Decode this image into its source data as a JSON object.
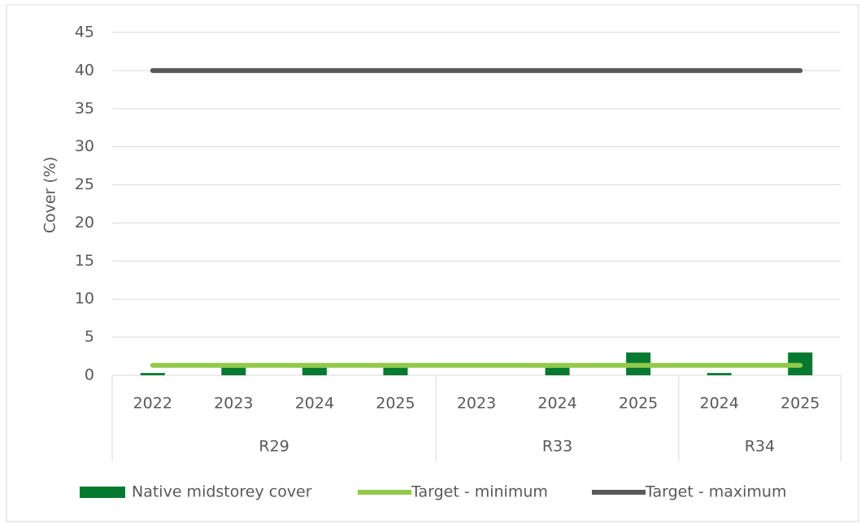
{
  "chart_data": {
    "type": "bar",
    "y_label": "Cover (%)",
    "categories": [
      "2022",
      "2023",
      "2024",
      "2025",
      "2023",
      "2024",
      "2025",
      "2024",
      "2025"
    ],
    "category_groups": [
      {
        "name": "R29",
        "size": 4
      },
      {
        "name": "R33",
        "size": 3
      },
      {
        "name": "R34",
        "size": 2
      }
    ],
    "series": [
      {
        "name": "Native midstorey cover",
        "type": "bar",
        "color": "#047a30",
        "values": [
          0.3,
          1,
          1,
          1,
          0,
          1,
          3,
          0.3,
          3
        ]
      },
      {
        "name": "Target - minimum",
        "type": "line",
        "color": "#92c94a",
        "values": [
          1.3,
          1.3,
          1.3,
          1.3,
          1.3,
          1.3,
          1.3,
          1.3,
          1.3
        ]
      },
      {
        "name": "Target - maximum",
        "type": "line",
        "color": "#595959",
        "values": [
          40,
          40,
          40,
          40,
          40,
          40,
          40,
          40,
          40
        ]
      }
    ],
    "ylim": [
      0,
      45
    ],
    "yticks": [
      0,
      5,
      10,
      15,
      20,
      25,
      30,
      35,
      40,
      45
    ],
    "grid": true,
    "legend": "bottom"
  }
}
